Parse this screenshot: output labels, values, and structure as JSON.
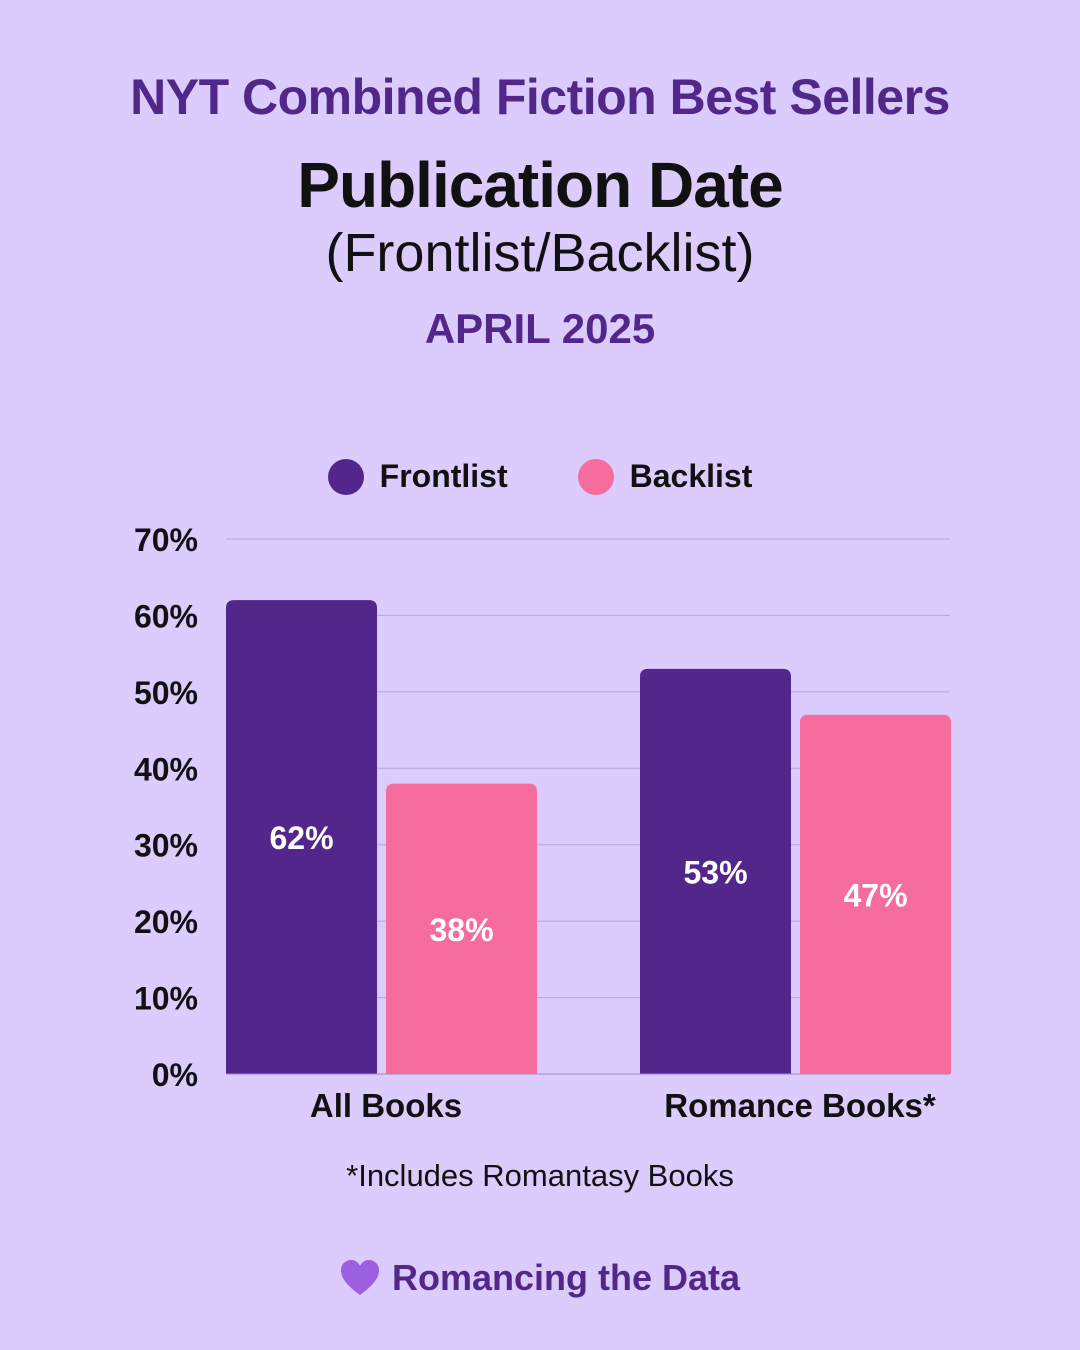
{
  "header": {
    "top_title": "NYT Combined Fiction Best Sellers",
    "main_title": "Publication Date",
    "subtitle": "(Frontlist/Backlist)",
    "date": "APRIL 2025"
  },
  "footnote": "*Includes Romantasy Books",
  "brand": {
    "text": "Romancing the Data",
    "icon": "heart-icon"
  },
  "colors": {
    "background": "#dccbfd",
    "frontlist": "#52268a",
    "backlist": "#f56c9d",
    "accent": "#52278a",
    "heart": "#9b5fe0"
  },
  "chart_data": {
    "type": "bar",
    "categories": [
      "All Books",
      "Romance Books*"
    ],
    "series": [
      {
        "name": "Frontlist",
        "values": [
          62,
          53
        ],
        "labels": [
          "62%",
          "53%"
        ]
      },
      {
        "name": "Backlist",
        "values": [
          38,
          47
        ],
        "labels": [
          "38%",
          "47%"
        ]
      }
    ],
    "yticks": [
      "0%",
      "10%",
      "20%",
      "30%",
      "40%",
      "50%",
      "60%",
      "70%"
    ],
    "ylim": [
      0,
      70
    ],
    "grid": true,
    "legend": "top-center"
  }
}
